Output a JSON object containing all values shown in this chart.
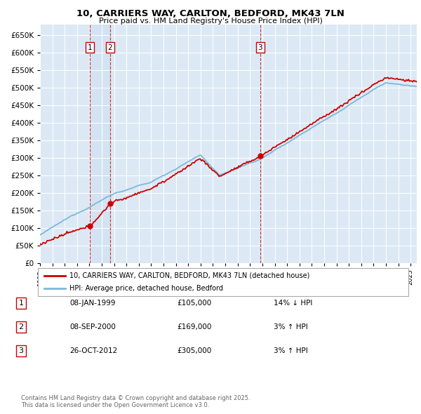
{
  "title": "10, CARRIERS WAY, CARLTON, BEDFORD, MK43 7LN",
  "subtitle": "Price paid vs. HM Land Registry's House Price Index (HPI)",
  "ylim": [
    0,
    680000
  ],
  "ytick_values": [
    0,
    50000,
    100000,
    150000,
    200000,
    250000,
    300000,
    350000,
    400000,
    450000,
    500000,
    550000,
    600000,
    650000
  ],
  "plot_bg_color": "#dce9f5",
  "grid_color": "#ffffff",
  "sale_year_floats": [
    1999.04,
    2000.67,
    2012.83
  ],
  "sale_prices": [
    105000,
    169000,
    305000
  ],
  "sale_labels": [
    "1",
    "2",
    "3"
  ],
  "hpi_color": "#7db8d8",
  "price_color": "#cc0000",
  "legend_label_price": "10, CARRIERS WAY, CARLTON, BEDFORD, MK43 7LN (detached house)",
  "legend_label_hpi": "HPI: Average price, detached house, Bedford",
  "table_rows": [
    [
      "1",
      "08-JAN-1999",
      "£105,000",
      "14% ↓ HPI"
    ],
    [
      "2",
      "08-SEP-2000",
      "£169,000",
      "3% ↑ HPI"
    ],
    [
      "3",
      "26-OCT-2012",
      "£305,000",
      "3% ↑ HPI"
    ]
  ],
  "footnote": "Contains HM Land Registry data © Crown copyright and database right 2025.\nThis data is licensed under the Open Government Licence v3.0."
}
